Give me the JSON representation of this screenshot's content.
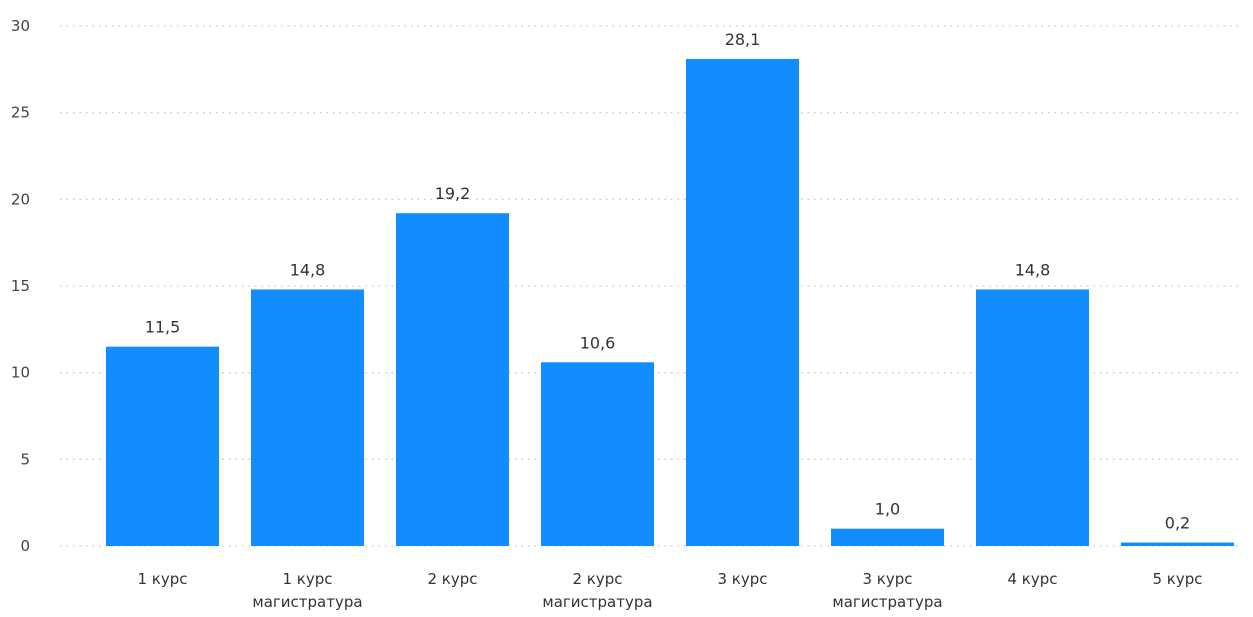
{
  "chart_data": {
    "type": "bar",
    "categories": [
      [
        "1 курс"
      ],
      [
        "1 курс",
        "магистратура"
      ],
      [
        "2 курс"
      ],
      [
        "2 курс",
        "магистратура"
      ],
      [
        "3 курс"
      ],
      [
        "3 курс",
        "магистратура"
      ],
      [
        "4 курс"
      ],
      [
        "5 курс"
      ]
    ],
    "values": [
      11.5,
      14.8,
      19.2,
      10.6,
      28.1,
      1.0,
      14.8,
      0.2
    ],
    "value_labels": [
      "11,5",
      "14,8",
      "19,2",
      "10,6",
      "28,1",
      "1,0",
      "14,8",
      "0,2"
    ],
    "yticks": [
      0,
      5,
      10,
      15,
      20,
      25,
      30
    ],
    "ylim": [
      0,
      30
    ],
    "grid": true,
    "bar_color": "#118dff",
    "title": "",
    "xlabel": "",
    "ylabel": ""
  }
}
